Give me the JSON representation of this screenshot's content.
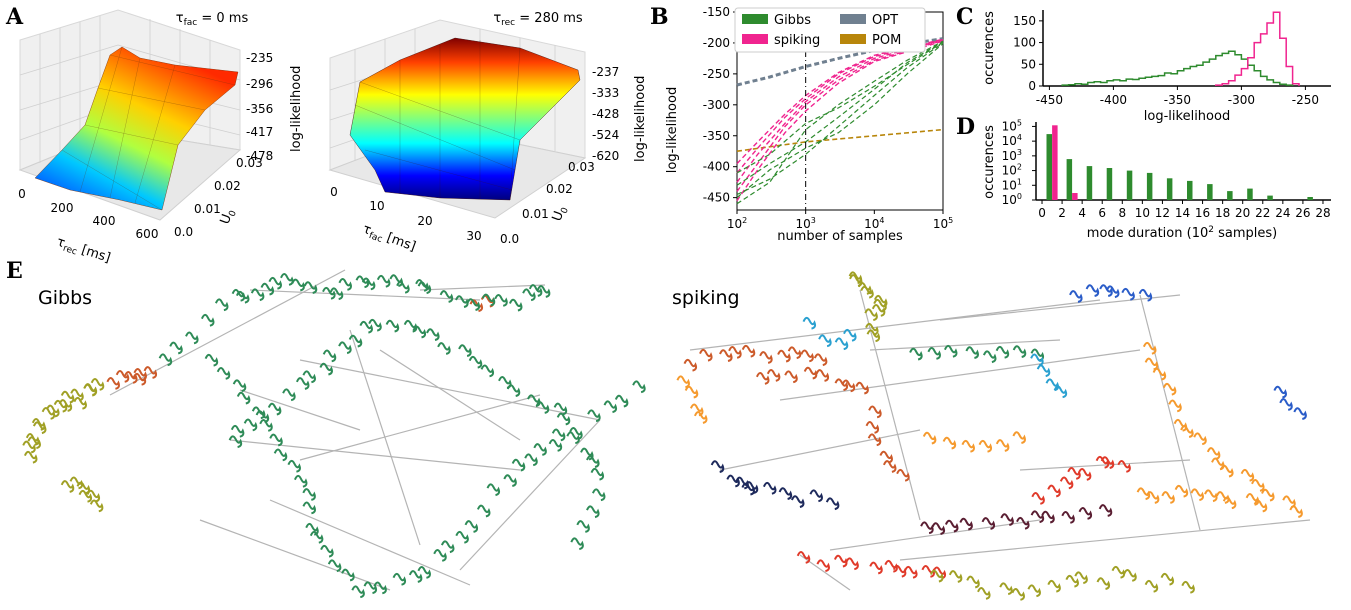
{
  "panels": {
    "A": "A",
    "B": "B",
    "C": "C",
    "D": "D",
    "E": "E"
  },
  "colors": {
    "gibbs": "#2e8b2e",
    "spiking": "#f0248f",
    "opt": "#708090",
    "pom": "#b8860b",
    "teal": "#2e8b57",
    "olive": "#a0a025",
    "rust": "#cc5a2a",
    "orange": "#f59a2e",
    "blue": "#2a5cc8",
    "navy": "#1e2a5c",
    "cyan": "#2aa0d0",
    "red": "#e03a2a",
    "maroon": "#5a1e32"
  },
  "chart_data": [
    {
      "id": "A-left",
      "type": "surface3d",
      "title_sym": "τ",
      "title_sub": "fac",
      "title_rest": " = 0 ms",
      "x_sym": "τ",
      "x_sub": "rec",
      "x_rest": " [ms]",
      "x_ticks": [
        "0",
        "200",
        "400",
        "600"
      ],
      "y_label": "U",
      "y_sub": "0",
      "y_ticks": [
        "0.0",
        "0.01",
        "0.02",
        "0.03"
      ],
      "z_label": "log-likelihood",
      "z_ticks": [
        "-235",
        "-296",
        "-356",
        "-417",
        "-478"
      ],
      "zlim": [
        -478,
        -235
      ]
    },
    {
      "id": "A-right",
      "type": "surface3d",
      "title_sym": "τ",
      "title_sub": "rec",
      "title_rest": " = 280 ms",
      "x_sym": "τ",
      "x_sub": "fac",
      "x_rest": " [ms]",
      "x_ticks": [
        "0",
        "10",
        "20",
        "30"
      ],
      "y_label": "U",
      "y_sub": "0",
      "y_ticks": [
        "0.0",
        "0.01",
        "0.02",
        "0.03"
      ],
      "z_label": "log-likelihood",
      "z_ticks": [
        "-237",
        "-333",
        "-428",
        "-524",
        "-620"
      ],
      "zlim": [
        -620,
        -237
      ]
    },
    {
      "id": "B",
      "type": "line",
      "xscale": "log",
      "xlabel": "number of samples",
      "ylabel": "log-likelihood",
      "xlim": [
        100,
        100000
      ],
      "ylim": [
        -470,
        -150
      ],
      "x_ticks": [
        {
          "base": "10",
          "exp": "2",
          "v": 100
        },
        {
          "base": "10",
          "exp": "3",
          "v": 1000
        },
        {
          "base": "10",
          "exp": "4",
          "v": 10000
        },
        {
          "base": "10",
          "exp": "5",
          "v": 100000
        }
      ],
      "y_ticks": [
        {
          "label": "-150",
          "v": -150
        },
        {
          "label": "-200",
          "v": -200
        },
        {
          "label": "-250",
          "v": -250
        },
        {
          "label": "-300",
          "v": -300
        },
        {
          "label": "-350",
          "v": -350
        },
        {
          "label": "-400",
          "v": -400
        },
        {
          "label": "-450",
          "v": -450
        }
      ],
      "vline_x": 1000,
      "legend": [
        {
          "name": "Gibbs",
          "color": "#2e8b2e"
        },
        {
          "name": "spiking",
          "color": "#f0248f"
        },
        {
          "name": "OPT",
          "color": "#708090"
        },
        {
          "name": "POM",
          "color": "#b8860b"
        }
      ],
      "legend_position": "top",
      "series": [
        {
          "name": "OPT",
          "color": "#708090",
          "width": 3,
          "x": [
            100,
            300,
            1000,
            3000,
            10000,
            30000,
            100000
          ],
          "y": [
            -268,
            -255,
            -238,
            -225,
            -212,
            -202,
            -193
          ]
        },
        {
          "name": "POM",
          "color": "#b8860b",
          "width": 1.6,
          "x": [
            100,
            1000,
            10000,
            100000
          ],
          "y": [
            -375,
            -360,
            -350,
            -340
          ]
        },
        {
          "name": "spiking",
          "color": "#f0248f",
          "width": 1.4,
          "x": [
            100,
            200,
            500,
            1000,
            3000,
            10000,
            100000
          ],
          "y": [
            -425,
            -380,
            -330,
            -295,
            -255,
            -225,
            -195
          ]
        },
        {
          "name": "spiking",
          "color": "#f0248f",
          "width": 1.4,
          "x": [
            100,
            200,
            500,
            1000,
            3000,
            10000,
            100000
          ],
          "y": [
            -440,
            -395,
            -335,
            -300,
            -260,
            -228,
            -196
          ]
        },
        {
          "name": "spiking",
          "color": "#f0248f",
          "width": 1.4,
          "x": [
            100,
            200,
            500,
            1000,
            3000,
            10000,
            100000
          ],
          "y": [
            -410,
            -370,
            -320,
            -290,
            -250,
            -222,
            -195
          ]
        },
        {
          "name": "spiking",
          "color": "#f0248f",
          "width": 1.4,
          "x": [
            100,
            200,
            500,
            1000,
            3000,
            10000,
            100000
          ],
          "y": [
            -455,
            -405,
            -345,
            -310,
            -265,
            -230,
            -197
          ]
        },
        {
          "name": "spiking",
          "color": "#f0248f",
          "width": 1.4,
          "x": [
            100,
            200,
            500,
            1000,
            3000,
            10000,
            100000
          ],
          "y": [
            -395,
            -360,
            -315,
            -285,
            -248,
            -220,
            -194
          ]
        },
        {
          "name": "Gibbs",
          "color": "#2e8b2e",
          "width": 1.2,
          "x": [
            100,
            300,
            1000,
            3000,
            10000,
            30000,
            100000
          ],
          "y": [
            -445,
            -420,
            -380,
            -335,
            -285,
            -240,
            -200
          ]
        },
        {
          "name": "Gibbs",
          "color": "#2e8b2e",
          "width": 1.2,
          "x": [
            100,
            300,
            1000,
            3000,
            10000,
            30000,
            100000
          ],
          "y": [
            -430,
            -395,
            -360,
            -320,
            -275,
            -232,
            -198
          ]
        },
        {
          "name": "Gibbs",
          "color": "#2e8b2e",
          "width": 1.2,
          "x": [
            100,
            300,
            1000,
            3000,
            10000,
            30000,
            100000
          ],
          "y": [
            -460,
            -425,
            -340,
            -300,
            -262,
            -228,
            -197
          ]
        },
        {
          "name": "Gibbs",
          "color": "#2e8b2e",
          "width": 1.2,
          "x": [
            100,
            300,
            1000,
            3000,
            10000,
            30000,
            100000
          ],
          "y": [
            -410,
            -380,
            -330,
            -305,
            -270,
            -235,
            -199
          ]
        },
        {
          "name": "Gibbs",
          "color": "#2e8b2e",
          "width": 1.2,
          "x": [
            100,
            300,
            1000,
            3000,
            10000,
            30000,
            100000
          ],
          "y": [
            -450,
            -405,
            -370,
            -345,
            -300,
            -250,
            -201
          ]
        }
      ]
    },
    {
      "id": "C",
      "type": "histogram",
      "xlabel": "log-likelihood",
      "ylabel": "occurences",
      "xlim": [
        -455,
        -230
      ],
      "ylim": [
        0,
        175
      ],
      "x_ticks": [
        {
          "label": "-450",
          "v": -450
        },
        {
          "label": "-400",
          "v": -400
        },
        {
          "label": "-350",
          "v": -350
        },
        {
          "label": "-300",
          "v": -300
        },
        {
          "label": "-250",
          "v": -250
        }
      ],
      "y_ticks": [
        {
          "label": "0",
          "v": 0
        },
        {
          "label": "50",
          "v": 50
        },
        {
          "label": "100",
          "v": 100
        },
        {
          "label": "150",
          "v": 150
        }
      ],
      "bin_width": 5,
      "series": [
        {
          "name": "Gibbs",
          "color": "#2e8b2e",
          "bin_starts": [
            -440,
            -435,
            -430,
            -425,
            -420,
            -415,
            -410,
            -405,
            -400,
            -395,
            -390,
            -385,
            -380,
            -375,
            -370,
            -365,
            -360,
            -355,
            -350,
            -345,
            -340,
            -335,
            -330,
            -325,
            -320,
            -315,
            -310,
            -305,
            -300,
            -295,
            -290,
            -285,
            -280,
            -275,
            -270,
            -265
          ],
          "counts": [
            2,
            3,
            5,
            4,
            8,
            10,
            8,
            12,
            14,
            12,
            16,
            15,
            18,
            20,
            22,
            24,
            30,
            28,
            35,
            40,
            45,
            48,
            55,
            62,
            70,
            75,
            80,
            72,
            62,
            48,
            35,
            22,
            14,
            8,
            4,
            2
          ]
        },
        {
          "name": "spiking",
          "color": "#f0248f",
          "bin_starts": [
            -320,
            -315,
            -310,
            -305,
            -300,
            -295,
            -290,
            -285,
            -280,
            -275,
            -270,
            -265,
            -260
          ],
          "counts": [
            2,
            5,
            12,
            25,
            40,
            65,
            100,
            120,
            145,
            170,
            110,
            45,
            5
          ]
        }
      ]
    },
    {
      "id": "D",
      "type": "bar",
      "yscale": "log",
      "xlabel_pre": "mode duration (10",
      "xlabel_exp": "2",
      "xlabel_post": " samples)",
      "ylabel": "occurences",
      "xlim": [
        -0.6,
        28.8
      ],
      "ylim": [
        1,
        200000
      ],
      "x_ticks": [
        "0",
        "2",
        "4",
        "6",
        "8",
        "10",
        "12",
        "14",
        "16",
        "18",
        "20",
        "22",
        "24",
        "26",
        "28"
      ],
      "y_ticks": [
        {
          "base": "10",
          "exp": "0",
          "v": 1
        },
        {
          "base": "10",
          "exp": "1",
          "v": 10
        },
        {
          "base": "10",
          "exp": "2",
          "v": 100
        },
        {
          "base": "10",
          "exp": "3",
          "v": 1000
        },
        {
          "base": "10",
          "exp": "4",
          "v": 10000
        },
        {
          "base": "10",
          "exp": "5",
          "v": 100000
        }
      ],
      "series": [
        {
          "name": "Gibbs",
          "color": "#2e8b2e",
          "x": [
            1,
            3,
            5,
            7,
            9,
            11,
            13,
            15,
            17,
            19,
            21,
            23,
            27
          ],
          "values": [
            30000,
            600,
            200,
            150,
            100,
            70,
            30,
            20,
            12,
            4,
            6,
            2,
            1.6
          ]
        },
        {
          "name": "spiking",
          "color": "#f0248f",
          "x": [
            1,
            3
          ],
          "values": [
            120000,
            3
          ]
        }
      ]
    },
    {
      "id": "E-Gibbs",
      "type": "scatter",
      "title": "Gibbs"
    },
    {
      "id": "E-spiking",
      "type": "scatter",
      "title": "spiking"
    }
  ]
}
